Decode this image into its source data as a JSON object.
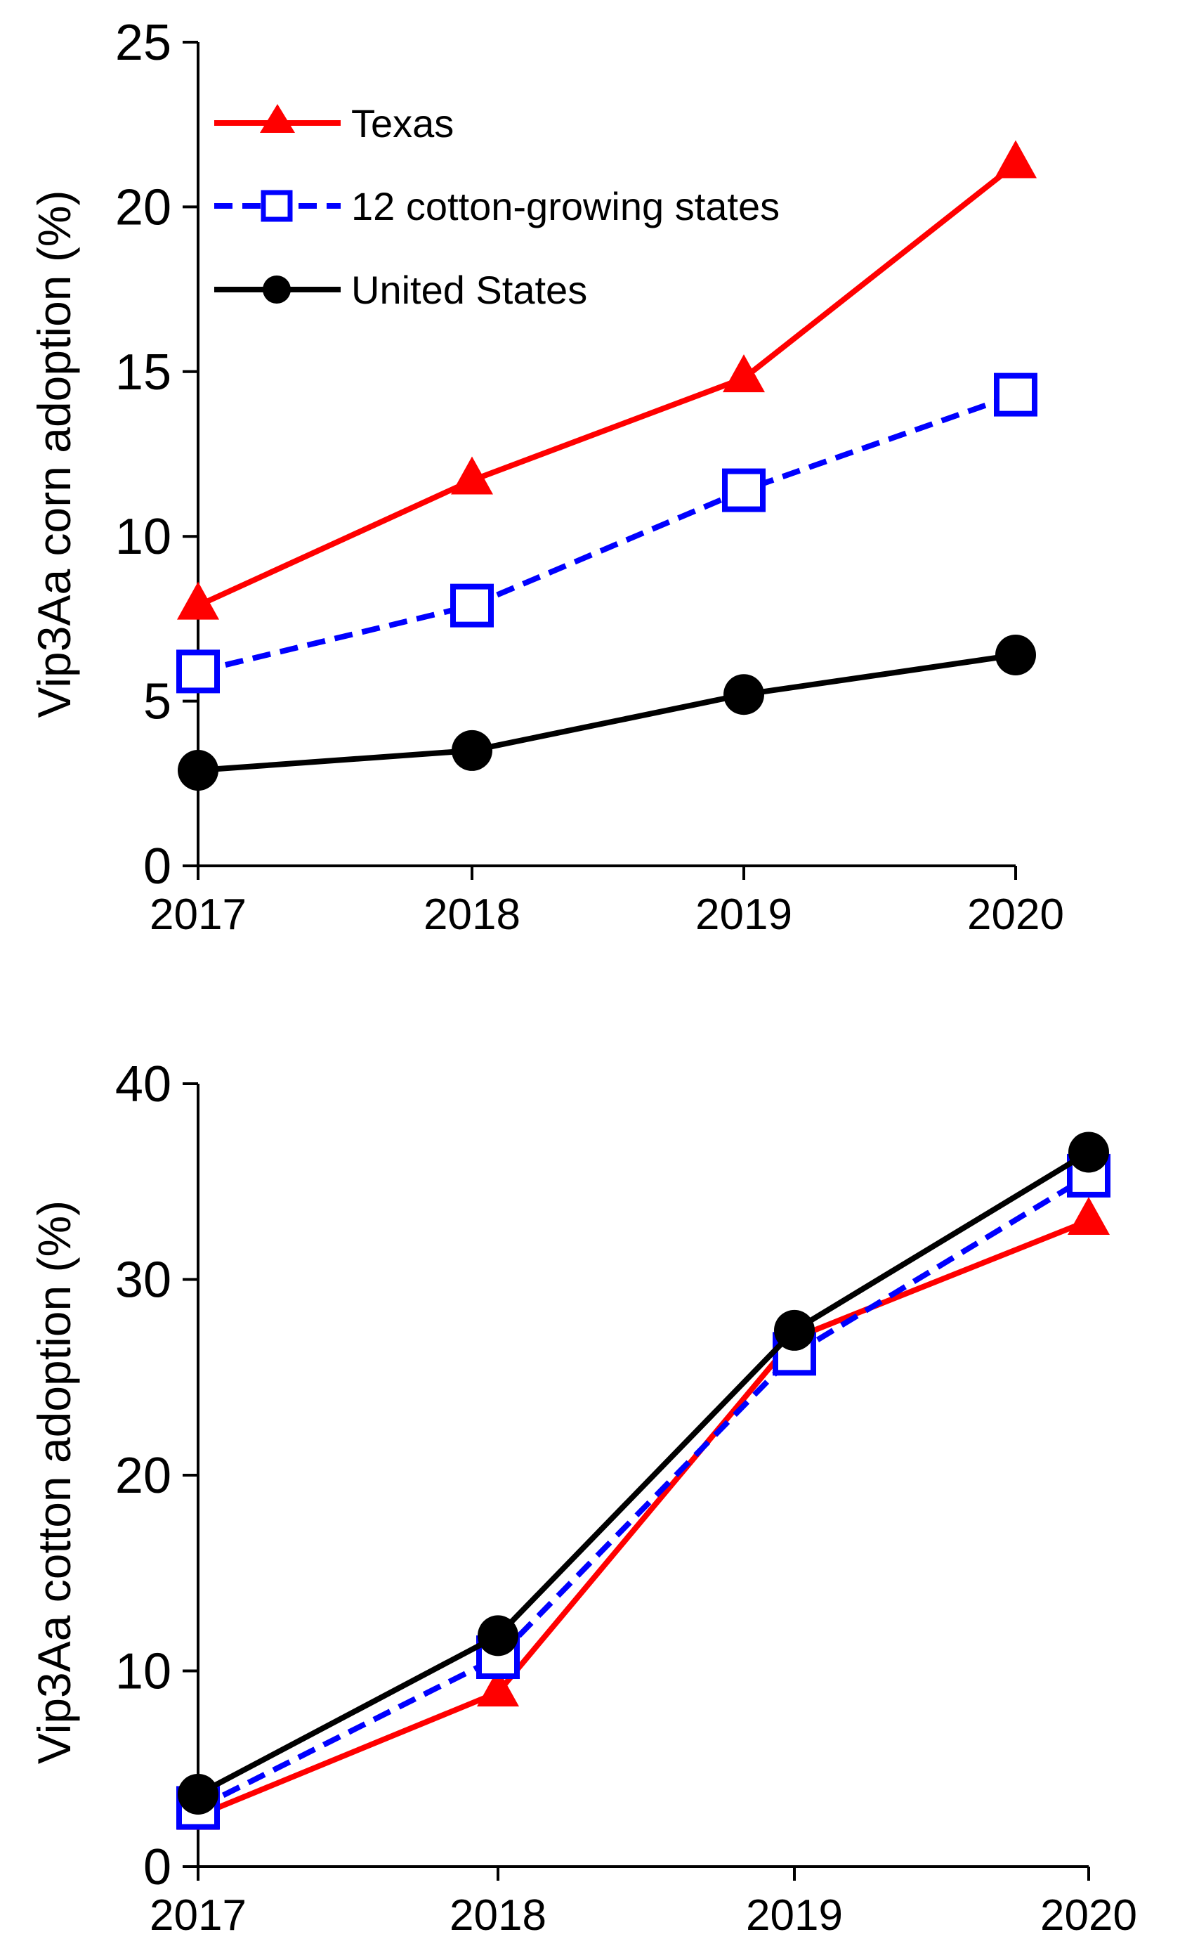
{
  "chart_data": [
    {
      "type": "line",
      "title": "",
      "xlabel": "",
      "ylabel": "Vip3Aa corn adoption (%)",
      "categories": [
        "2017",
        "2018",
        "2019",
        "2020"
      ],
      "ylim": [
        0,
        25
      ],
      "yticks": [
        "0",
        "5",
        "10",
        "15",
        "20",
        "25"
      ],
      "legend": "top-left",
      "series": [
        {
          "name": "Texas",
          "values": [
            7.9,
            11.7,
            14.8,
            21.3
          ],
          "color": "#ff0000",
          "marker": "triangle",
          "line": "solid"
        },
        {
          "name": "12 cotton-growing states",
          "values": [
            5.9,
            7.9,
            11.4,
            14.3
          ],
          "color": "#0000ff",
          "marker": "square",
          "line": "dashed"
        },
        {
          "name": "United States",
          "values": [
            2.9,
            3.5,
            5.2,
            6.4
          ],
          "color": "#000000",
          "marker": "circle",
          "line": "solid"
        }
      ]
    },
    {
      "type": "line",
      "title": "",
      "xlabel": "",
      "ylabel": "Vip3Aa cotton adoption (%)",
      "categories": [
        "2017",
        "2018",
        "2019",
        "2020"
      ],
      "ylim": [
        0,
        40
      ],
      "yticks": [
        "0",
        "10",
        "20",
        "30",
        "40"
      ],
      "legend": "none",
      "series": [
        {
          "name": "Texas",
          "values": [
            2.6,
            8.9,
            27.0,
            33.0
          ],
          "color": "#ff0000",
          "marker": "triangle",
          "line": "solid"
        },
        {
          "name": "12 cotton-growing states",
          "values": [
            3.0,
            10.7,
            26.2,
            35.3
          ],
          "color": "#0000ff",
          "marker": "square",
          "line": "dashed"
        },
        {
          "name": "United States",
          "values": [
            3.7,
            11.8,
            27.4,
            36.5
          ],
          "color": "#000000",
          "marker": "circle",
          "line": "solid"
        }
      ]
    }
  ]
}
